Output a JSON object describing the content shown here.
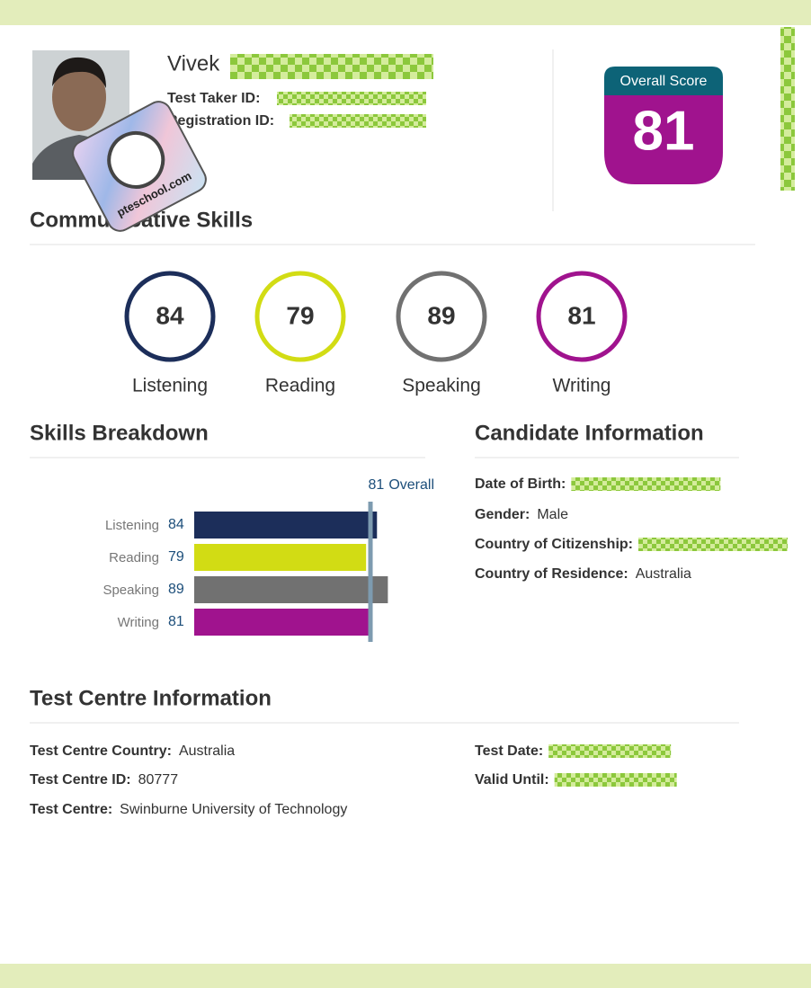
{
  "header": {
    "name": "Vivek",
    "test_taker_id_label": "Test Taker ID:",
    "registration_id_label": "Registration ID:",
    "overall_score_label": "Overall Score",
    "overall_score": 81
  },
  "watermark": "pteschool.com",
  "communicative_skills": {
    "title": "Communicative Skills",
    "skills": [
      {
        "name": "Listening",
        "score": 84,
        "color": "#1c2e5a"
      },
      {
        "name": "Reading",
        "score": 79,
        "color": "#d2dc14"
      },
      {
        "name": "Speaking",
        "score": 89,
        "color": "#717171"
      },
      {
        "name": "Writing",
        "score": 81,
        "color": "#a0138e"
      }
    ]
  },
  "skills_breakdown": {
    "title": "Skills Breakdown",
    "overall": 81,
    "overall_label": "Overall"
  },
  "candidate_information": {
    "title": "Candidate Information",
    "fields": [
      {
        "label": "Date of Birth:"
      },
      {
        "label": "Gender:",
        "value": "Male"
      },
      {
        "label": "Country of Citizenship:"
      },
      {
        "label": "Country of Residence:",
        "value": "Australia"
      }
    ]
  },
  "test_centre_information": {
    "title": "Test Centre Information",
    "left_fields": [
      {
        "label": "Test Centre Country:",
        "value": "Australia"
      },
      {
        "label": "Test Centre ID:",
        "value": 80777
      },
      {
        "label": "Test Centre:",
        "value": "Swinburne University of Technology"
      }
    ],
    "right_fields": [
      {
        "label": "Test Date:"
      },
      {
        "label": "Valid Until:"
      }
    ]
  }
}
